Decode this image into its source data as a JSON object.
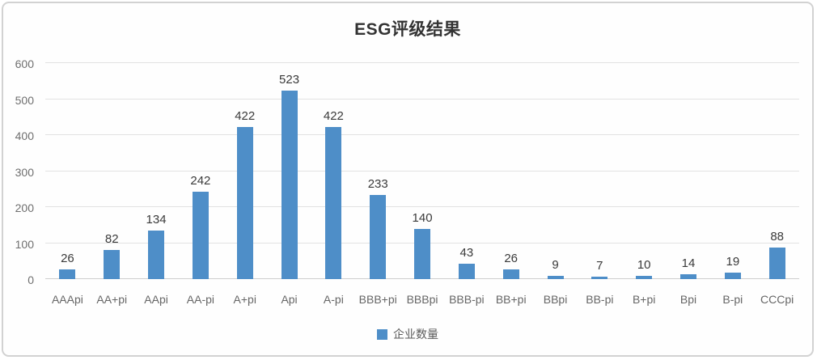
{
  "chart_data": {
    "type": "bar",
    "title": "ESG评级结果",
    "categories": [
      "AAApi",
      "AA+pi",
      "AApi",
      "AA-pi",
      "A+pi",
      "Api",
      "A-pi",
      "BBB+pi",
      "BBBpi",
      "BBB-pi",
      "BB+pi",
      "BBpi",
      "BB-pi",
      "B+pi",
      "Bpi",
      "B-pi",
      "CCCpi"
    ],
    "values": [
      26,
      82,
      134,
      242,
      422,
      523,
      422,
      233,
      140,
      43,
      26,
      9,
      7,
      10,
      14,
      19,
      88
    ],
    "legend": [
      "企业数量"
    ],
    "legend_position": "bottom",
    "xlabel": "",
    "ylabel": "",
    "ylim": [
      0,
      600
    ],
    "yticks": [
      0,
      100,
      200,
      300,
      400,
      500,
      600
    ],
    "grid": true,
    "data_labels": true
  },
  "colors": {
    "bar": "#4E8EC8",
    "grid": "#E2E2E2",
    "baseline": "#CFCFCF",
    "title": "#333333",
    "data_label": "#3A3A3A",
    "tick_label": "#6F6F6F"
  }
}
